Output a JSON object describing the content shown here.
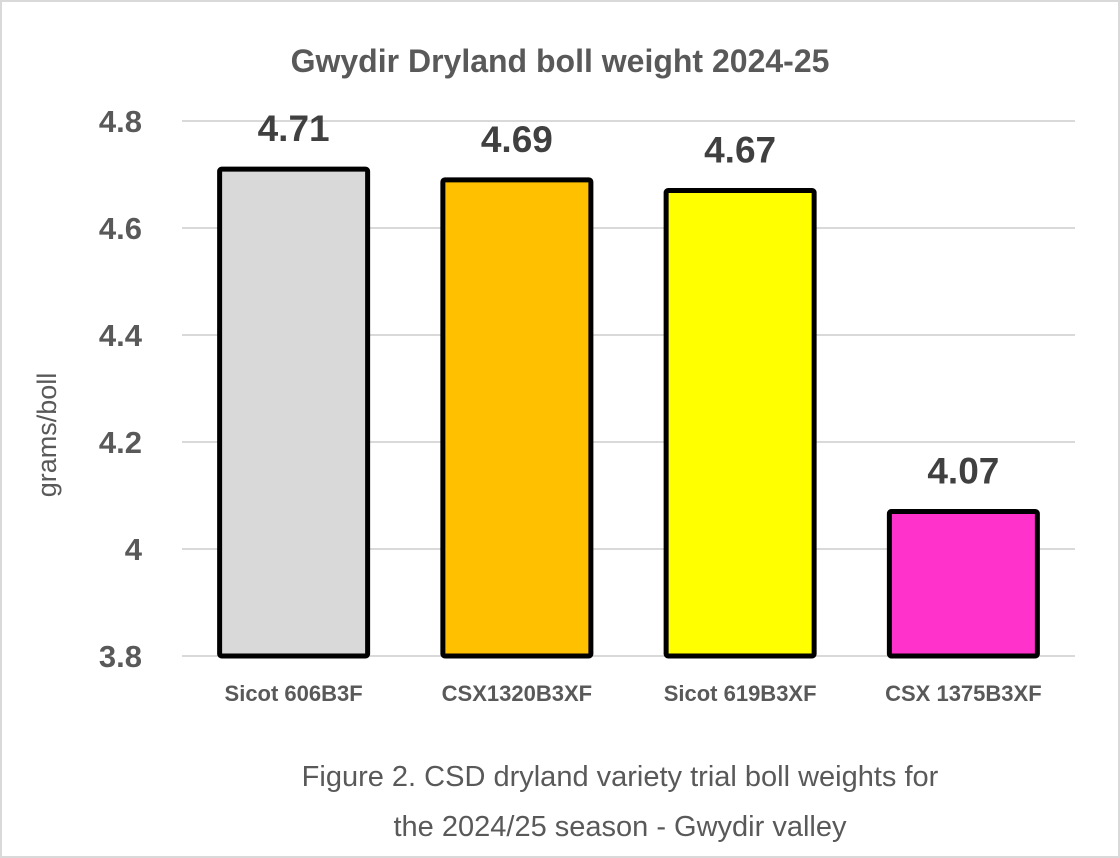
{
  "chart_data": {
    "type": "bar",
    "title": "Gwydir Dryland boll weight 2024-25",
    "xlabel": "",
    "ylabel": "grams/boll",
    "categories": [
      "Sicot 606B3F",
      "CSX1320B3XF",
      "Sicot 619B3XF",
      "CSX 1375B3XF"
    ],
    "values": [
      4.71,
      4.69,
      4.67,
      4.07
    ],
    "data_labels": [
      "4.71",
      "4.69",
      "4.67",
      "4.07"
    ],
    "bar_colors": [
      "#d9d9d9",
      "#ffc000",
      "#ffff00",
      "#ff33cc"
    ],
    "bar_outline_color": "#000000",
    "ylim": [
      3.8,
      4.8
    ],
    "yticks": [
      3.8,
      4,
      4.2,
      4.4,
      4.6,
      4.8
    ],
    "ytick_labels": [
      "3.8",
      "4",
      "4.2",
      "4.4",
      "4.6",
      "4.8"
    ],
    "grid": true,
    "legend": "none"
  },
  "caption": {
    "line1": "Figure 2. CSD dryland variety trial boll weights for",
    "line2": "the 2024/25 season - Gwydir valley"
  }
}
